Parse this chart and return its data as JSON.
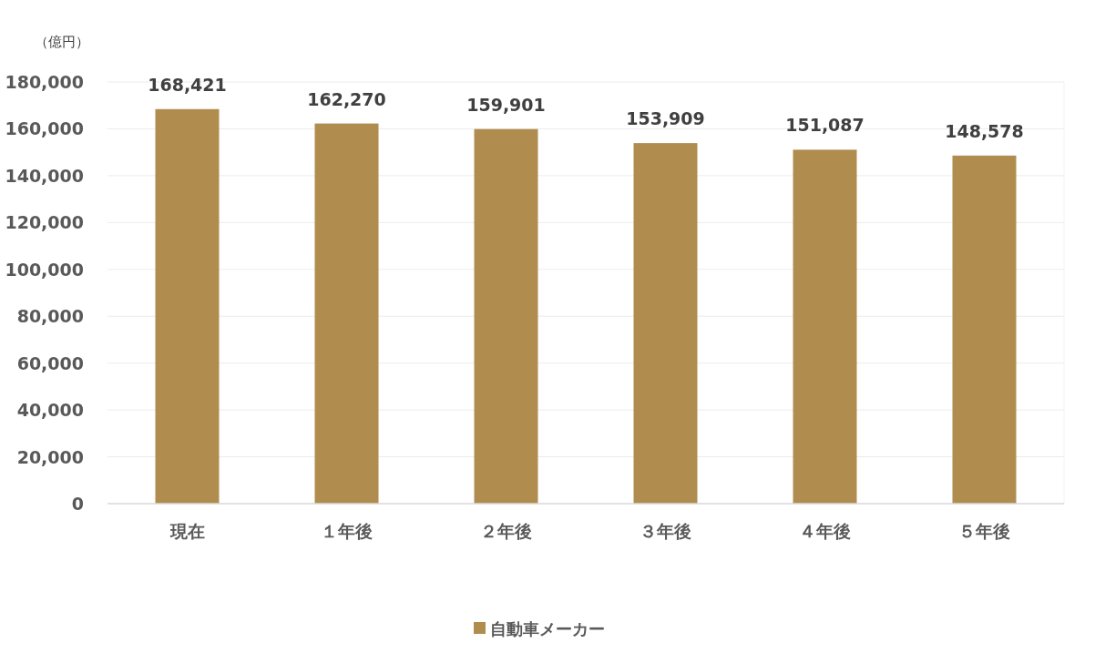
{
  "chart_data": {
    "type": "bar",
    "ylabel": "（億円）",
    "categories": [
      "現在",
      "１年後",
      "２年後",
      "３年後",
      "４年後",
      "５年後"
    ],
    "series": [
      {
        "name": "自動車メーカー",
        "color": "#b08d4e",
        "values": [
          168421,
          162270,
          159901,
          153909,
          151087,
          148578
        ],
        "value_labels": [
          "168,421",
          "162,270",
          "159,901",
          "153,909",
          "151,087",
          "148,578"
        ]
      }
    ],
    "ylim": [
      0,
      180000
    ],
    "yticks": [
      {
        "value": 0,
        "label": "0"
      },
      {
        "value": 20000,
        "label": "20,000"
      },
      {
        "value": 40000,
        "label": "40,000"
      },
      {
        "value": 60000,
        "label": "60,000"
      },
      {
        "value": 80000,
        "label": "80,000"
      },
      {
        "value": 100000,
        "label": "100,000"
      },
      {
        "value": 120000,
        "label": "120,000"
      },
      {
        "value": 140000,
        "label": "140,000"
      },
      {
        "value": 160000,
        "label": "160,000"
      },
      {
        "value": 180000,
        "label": "180,000"
      }
    ],
    "grid": "y",
    "legend": "bottom"
  }
}
